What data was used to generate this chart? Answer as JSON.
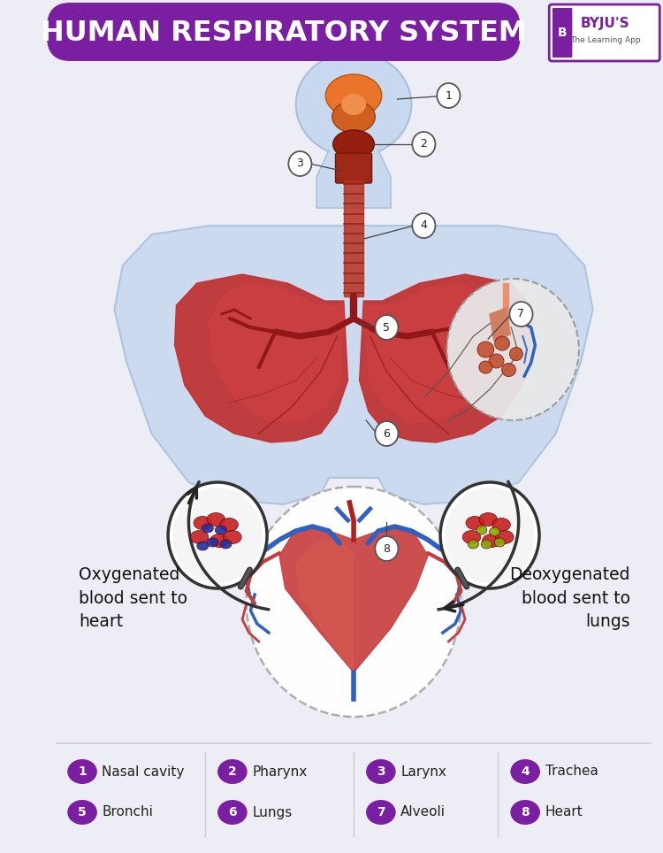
{
  "title": "HUMAN RESPIRATORY SYSTEM",
  "title_bg_color": "#7B1FA2",
  "title_text_color": "#FFFFFF",
  "bg_color": "#EDEDF5",
  "body_fill": "#C8D8EE",
  "body_edge": "#A8C0DC",
  "purple_color": "#7B1FA2",
  "lung_fill": "#C03030",
  "lung_highlight": "#E05050",
  "trachea_fill": "#B03820",
  "legend_items_row1": [
    {
      "num": "1",
      "label": "Nasal cavity"
    },
    {
      "num": "2",
      "label": "Pharynx"
    },
    {
      "num": "3",
      "label": "Larynx"
    },
    {
      "num": "4",
      "label": "Trachea"
    }
  ],
  "legend_items_row2": [
    {
      "num": "5",
      "label": "Bronchi"
    },
    {
      "num": "6",
      "label": "Lungs"
    },
    {
      "num": "7",
      "label": "Alveoli"
    },
    {
      "num": "8",
      "label": "Heart"
    }
  ],
  "label_oxygenated": "Oxygenated\nblood sent to\nheart",
  "label_deoxygenated": "Deoxygenated\nblood sent to\nlungs"
}
